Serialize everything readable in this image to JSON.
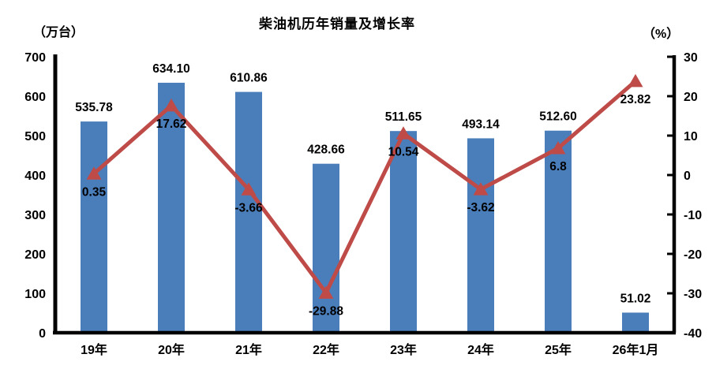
{
  "chart_data": {
    "type": "combo-bar-line",
    "title": "柴油机历年销量及增长率",
    "categories": [
      "19年",
      "20年",
      "21年",
      "22年",
      "23年",
      "24年",
      "25年",
      "26年1月"
    ],
    "bar_series": {
      "axis": "left",
      "color": "#4a7ebb",
      "values": [
        535.78,
        634.1,
        610.86,
        428.66,
        511.65,
        493.14,
        512.6,
        51.02
      ],
      "labels": [
        "535.78",
        "634.10",
        "610.86",
        "428.66",
        "511.65",
        "493.14",
        "512.60",
        "51.02"
      ]
    },
    "line_series": {
      "axis": "right",
      "color": "#be4b48",
      "marker": "triangle-up",
      "values": [
        0.35,
        17.62,
        -3.66,
        -29.88,
        10.54,
        -3.62,
        6.8,
        23.82
      ],
      "labels": [
        "0.35",
        "17.62",
        "-3.66",
        "-29.88",
        "10.54",
        "-3.62",
        "6.8",
        "23.82"
      ]
    },
    "left_axis": {
      "unit": "（万台）",
      "min": 0,
      "max": 700,
      "ticks": [
        700,
        600,
        500,
        400,
        300,
        200,
        100,
        0
      ]
    },
    "right_axis": {
      "unit": "（%）",
      "min": -40,
      "max": 30,
      "ticks": [
        30,
        20,
        10,
        0,
        -10,
        -20,
        -30,
        -40
      ]
    },
    "grid": false,
    "legend": "none",
    "text_color": "#000000",
    "axis_color": "#000000",
    "background": "#ffffff"
  }
}
